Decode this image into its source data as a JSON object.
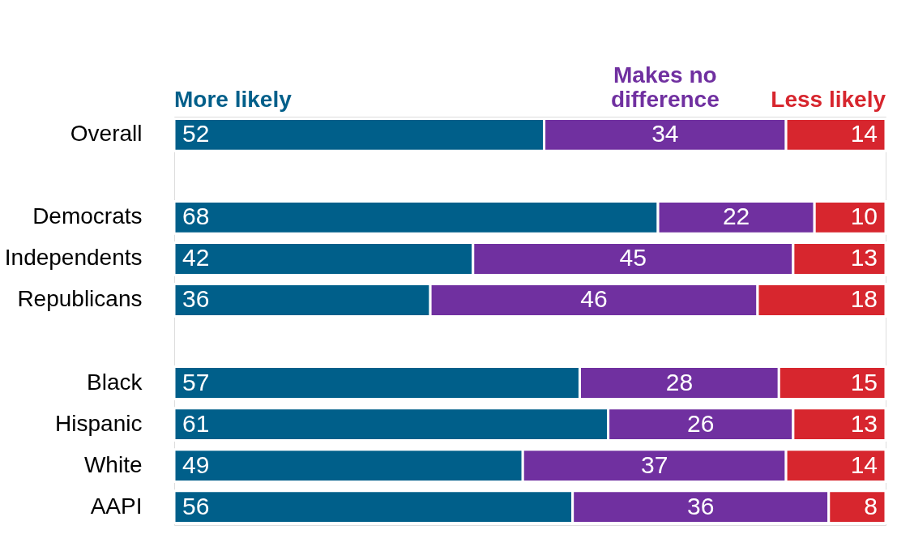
{
  "chart_data": {
    "type": "bar",
    "orientation": "horizontal",
    "stacked": true,
    "data_labels": true,
    "legend": "top",
    "grid": false,
    "categories": [
      "Overall",
      null,
      "Democrats",
      "Independents",
      "Republicans",
      null,
      "Black",
      "Hispanic",
      "White",
      "AAPI"
    ],
    "series": [
      {
        "name": "More likely",
        "color": "#005f8a",
        "values": [
          52,
          null,
          68,
          42,
          36,
          null,
          57,
          61,
          49,
          56
        ]
      },
      {
        "name": "Makes no difference",
        "color": "#7030a0",
        "values": [
          34,
          null,
          22,
          45,
          46,
          null,
          28,
          26,
          37,
          36
        ]
      },
      {
        "name": "Less likely",
        "color": "#d7262e",
        "values": [
          14,
          null,
          10,
          13,
          18,
          null,
          15,
          13,
          14,
          8
        ]
      }
    ]
  }
}
